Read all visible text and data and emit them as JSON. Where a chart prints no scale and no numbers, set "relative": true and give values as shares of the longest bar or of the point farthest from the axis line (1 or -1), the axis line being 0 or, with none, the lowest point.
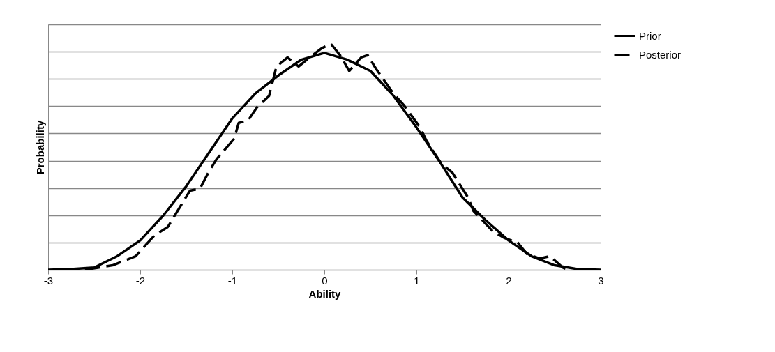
{
  "chart_data": {
    "type": "line",
    "relative": true,
    "xlabel": "Ability",
    "ylabel": "Probability",
    "xlim": [
      -3,
      3
    ],
    "xticks": [
      -3,
      -2,
      -1,
      0,
      1,
      2,
      3
    ],
    "grid": "y",
    "legend": "right",
    "marker": "none",
    "series": [
      {
        "name": "Prior",
        "color": "#000000",
        "line_style": "solid",
        "x": [
          -3,
          -2.75,
          -2.5,
          -2.25,
          -2,
          -1.75,
          -1.5,
          -1.25,
          -1,
          -0.75,
          -0.5,
          -0.25,
          0,
          0.25,
          0.5,
          0.75,
          1,
          1.25,
          1.5,
          1.75,
          2,
          2.25,
          2.5,
          2.75,
          3
        ],
        "values": [
          0,
          0.003,
          0.01,
          0.06,
          0.13,
          0.24,
          0.37,
          0.52,
          0.67,
          0.78,
          0.86,
          0.93,
          0.96,
          0.93,
          0.88,
          0.77,
          0.63,
          0.48,
          0.32,
          0.22,
          0.13,
          0.06,
          0.02,
          0.003,
          0
        ]
      },
      {
        "name": "Posterior",
        "color": "#000000",
        "line_style": "dashed",
        "x": [
          -2.6,
          -2.3,
          -2.05,
          -1.85,
          -1.7,
          -1.55,
          -1.46,
          -1.35,
          -1.26,
          -1.17,
          -0.98,
          -0.93,
          -0.83,
          -0.73,
          -0.6,
          -0.52,
          -0.4,
          -0.28,
          -0.16,
          -0.03,
          0.07,
          0.17,
          0.27,
          0.4,
          0.47,
          0.56,
          0.75,
          0.86,
          1.04,
          1.11,
          1.27,
          1.39,
          1.56,
          1.62,
          1.83,
          1.96,
          2.1,
          2.2,
          2.34,
          2.45,
          2.59,
          2.65
        ],
        "values": [
          0,
          0.02,
          0.06,
          0.15,
          0.19,
          0.29,
          0.35,
          0.36,
          0.43,
          0.49,
          0.58,
          0.65,
          0.66,
          0.72,
          0.77,
          0.9,
          0.94,
          0.9,
          0.94,
          0.98,
          1.0,
          0.95,
          0.88,
          0.94,
          0.95,
          0.89,
          0.78,
          0.73,
          0.63,
          0.57,
          0.47,
          0.43,
          0.32,
          0.26,
          0.17,
          0.14,
          0.12,
          0.07,
          0.05,
          0.06,
          0.01,
          0
        ]
      }
    ]
  }
}
